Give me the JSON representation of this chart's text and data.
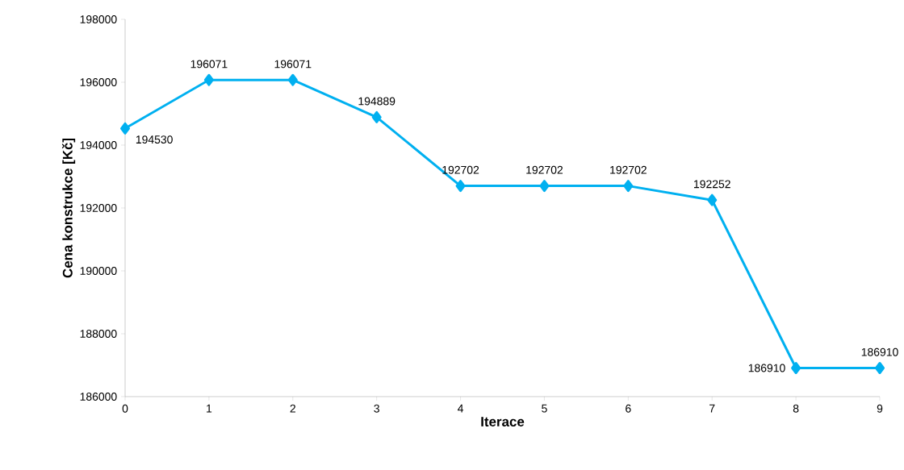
{
  "chart_data": {
    "type": "line",
    "xlabel": "Iterace",
    "ylabel": "Cena konstrukce [Kč]",
    "x": [
      0,
      1,
      2,
      3,
      4,
      5,
      6,
      7,
      8,
      9
    ],
    "values": [
      194530,
      196071,
      196071,
      194889,
      192702,
      192702,
      192702,
      192252,
      186910,
      186910
    ],
    "color": "#00b0f0",
    "marker": "diamond",
    "line_style": "solid",
    "data_labels": true,
    "grid": false,
    "xlim": [
      0,
      9
    ],
    "xticks": [
      0,
      1,
      2,
      3,
      4,
      5,
      6,
      7,
      8,
      9
    ],
    "ylim": [
      186000,
      198000
    ],
    "yticks": [
      186000,
      188000,
      190000,
      192000,
      194000,
      196000,
      198000
    ]
  }
}
